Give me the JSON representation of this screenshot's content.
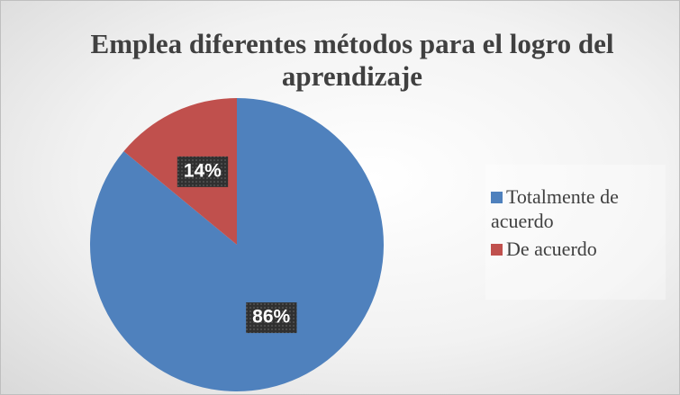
{
  "chart_data": {
    "type": "pie",
    "title": "Emplea diferentes métodos para el logro del aprendizaje",
    "categories": [
      "Totalmente de acuerdo",
      "De acuerdo"
    ],
    "values": [
      86,
      14
    ],
    "value_labels": [
      "86%",
      "14%"
    ],
    "colors": [
      "#4f81bd",
      "#c0504d"
    ],
    "legend": "right"
  }
}
